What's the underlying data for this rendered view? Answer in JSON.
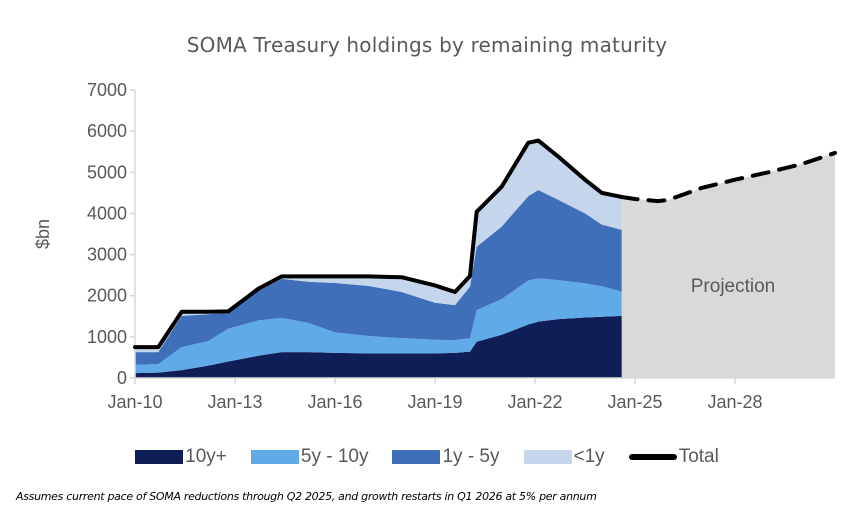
{
  "chart_data": {
    "type": "area",
    "stacked": true,
    "title": "SOMA Treasury holdings by remaining maturity",
    "xlabel": "",
    "ylabel": "$bn",
    "ylim": [
      0,
      7000
    ],
    "yticks": [
      0,
      1000,
      2000,
      3000,
      4000,
      5000,
      6000,
      7000
    ],
    "xlim": [
      2010.0,
      2031.0
    ],
    "xticks": [
      {
        "value": 2010,
        "label": "Jan-10"
      },
      {
        "value": 2013,
        "label": "Jan-13"
      },
      {
        "value": 2016,
        "label": "Jan-16"
      },
      {
        "value": 2019,
        "label": "Jan-19"
      },
      {
        "value": 2022,
        "label": "Jan-22"
      },
      {
        "value": 2025,
        "label": "Jan-25"
      },
      {
        "value": 2028,
        "label": "Jan-28"
      }
    ],
    "x": [
      2010.0,
      2010.7,
      2011.4,
      2012.2,
      2012.8,
      2013.7,
      2014.4,
      2015.2,
      2016.0,
      2017.0,
      2018.0,
      2019.0,
      2019.6,
      2020.05,
      2020.25,
      2021.0,
      2021.8,
      2022.1,
      2022.7,
      2023.5,
      2024.0,
      2024.6
    ],
    "series": [
      {
        "name": "10y+",
        "color": "#101E57",
        "values": [
          120,
          130,
          190,
          300,
          400,
          540,
          630,
          630,
          610,
          600,
          600,
          600,
          610,
          640,
          880,
          1050,
          1300,
          1370,
          1430,
          1470,
          1490,
          1510
        ]
      },
      {
        "name": "5y - 10y",
        "color": "#60AAE8",
        "values": [
          200,
          210,
          560,
          600,
          800,
          860,
          830,
          710,
          500,
          420,
          370,
          330,
          310,
          330,
          770,
          870,
          1070,
          1050,
          950,
          830,
          740,
          590
        ]
      },
      {
        "name": "1y - 5y",
        "color": "#3F6FB8",
        "values": [
          310,
          290,
          760,
          650,
          380,
          720,
          950,
          1000,
          1200,
          1220,
          1120,
          900,
          850,
          1250,
          1540,
          1760,
          2050,
          2150,
          1950,
          1700,
          1500,
          1500
        ]
      },
      {
        "name": "<1y",
        "color": "#C5D5EC",
        "values": [
          120,
          120,
          100,
          60,
          40,
          50,
          60,
          130,
          160,
          230,
          360,
          420,
          320,
          260,
          850,
          970,
          1300,
          1200,
          1050,
          820,
          770,
          800
        ]
      }
    ],
    "total": {
      "name": "Total",
      "color": "#000000",
      "values": [
        750,
        750,
        1610,
        1610,
        1620,
        2170,
        2470,
        2470,
        2470,
        2470,
        2450,
        2250,
        2090,
        2480,
        4040,
        4650,
        5720,
        5770,
        5380,
        4820,
        4500,
        4400
      ]
    },
    "projection": {
      "label": "Projection",
      "color": "#D9D9D9",
      "x": [
        2024.6,
        2025.0,
        2025.7,
        2026.0,
        2027.0,
        2028.0,
        2029.0,
        2030.0,
        2031.0
      ],
      "values": [
        4400,
        4350,
        4300,
        4330,
        4620,
        4820,
        5000,
        5200,
        5470
      ]
    },
    "legend": [
      {
        "label": "10y+",
        "color": "#101E57",
        "kind": "area"
      },
      {
        "label": "5y - 10y",
        "color": "#60AAE8",
        "kind": "area"
      },
      {
        "label": "1y - 5y",
        "color": "#3F6FB8",
        "kind": "area"
      },
      {
        "label": "<1y",
        "color": "#C5D5EC",
        "kind": "area"
      },
      {
        "label": "Total",
        "color": "#000000",
        "kind": "line"
      }
    ],
    "legend_position": "bottom",
    "grid": false,
    "footnote": "Assumes current pace of SOMA reductions through Q2 2025, and growth restarts in Q1 2026 at 5% per annum"
  }
}
